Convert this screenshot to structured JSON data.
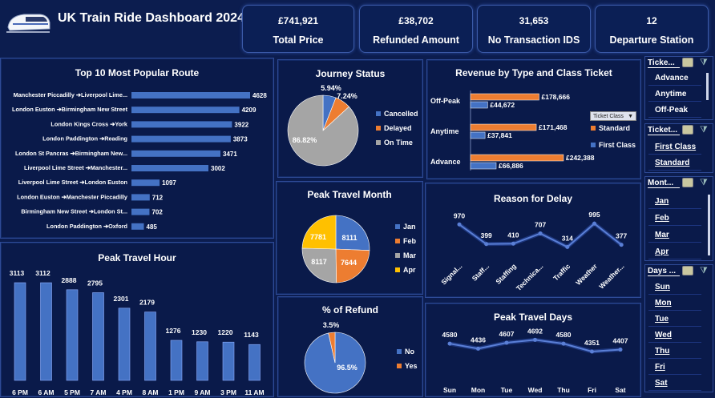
{
  "header": {
    "title": "UK Train Ride Dashboard 2024"
  },
  "kpis": [
    {
      "value": "£741,921",
      "label": "Total Price"
    },
    {
      "value": "£38,702",
      "label": "Refunded Amount"
    },
    {
      "value": "31,653",
      "label": "No Transaction IDS"
    },
    {
      "value": "12",
      "label": "Departure Station"
    }
  ],
  "panels": {
    "routes_title": "Top 10 Most Popular Route",
    "journey_title": "Journey Status",
    "revenue_title": "Revenue by Type and Class Ticket",
    "month_title": "Peak Travel Month",
    "delay_title": "Reason for Delay",
    "hour_title": "Peak Travel Hour",
    "refund_title": "% of Refund",
    "days_title": "Peak Travel Days"
  },
  "ticket_class_dropdown": "Ticket Class",
  "slicers": [
    {
      "header": "Ticke...",
      "items": [
        "Advance",
        "Anytime",
        "Off-Peak"
      ]
    },
    {
      "header": "Ticket...",
      "items": [
        "First Class",
        "Standard"
      ]
    },
    {
      "header": "Mont...",
      "items": [
        "Jan",
        "Feb",
        "Mar",
        "Apr"
      ]
    },
    {
      "header": "Days ...",
      "items": [
        "Sun",
        "Mon",
        "Tue",
        "Wed",
        "Thu",
        "Fri",
        "Sat"
      ]
    }
  ],
  "colors": {
    "blue": "#4472c4",
    "orange": "#ed7d31",
    "gray": "#a5a5a5",
    "yellow": "#ffc000",
    "bg": "#0c1d4f"
  },
  "chart_data": [
    {
      "id": "routes",
      "type": "bar",
      "orientation": "horizontal",
      "categories": [
        "Manchester Piccadilly ➔Liverpool Lime...",
        "London Euston ➔Birmingham New Street",
        "London Kings Cross ➔York",
        "London Paddington ➔Reading",
        "London St Pancras ➔Birmingham New...",
        "Liverpool Lime Street ➔Manchester...",
        "Liverpool Lime Street ➔London Euston",
        "London Euston ➔Manchester Piccadilly",
        "Birmingham New Street ➔London St...",
        "London Paddington ➔Oxford"
      ],
      "values": [
        4628,
        4209,
        3922,
        3873,
        3471,
        3002,
        1097,
        712,
        702,
        485
      ],
      "labels": [
        "4628",
        "4209",
        "3922",
        "3873",
        "3471",
        "3002",
        "1097",
        "712",
        "702",
        "485"
      ]
    },
    {
      "id": "journey",
      "type": "pie",
      "categories": [
        "Cancelled",
        "Delayed",
        "On Time"
      ],
      "values": [
        5.94,
        7.24,
        86.82
      ],
      "labels": [
        "5.94%",
        "7.24%",
        "86.82%"
      ],
      "colors": [
        "#4472c4",
        "#ed7d31",
        "#a5a5a5"
      ]
    },
    {
      "id": "revenue",
      "type": "bar",
      "orientation": "horizontal",
      "categories": [
        "Off-Peak",
        "Anytime",
        "Advance"
      ],
      "series": [
        {
          "name": "Standard",
          "values": [
            178666,
            171468,
            242388
          ],
          "labels": [
            "£178,666",
            "£171,468",
            "£242,388"
          ],
          "color": "#ed7d31"
        },
        {
          "name": "First Class",
          "values": [
            44672,
            37841,
            66886
          ],
          "labels": [
            "£44,672",
            "£37,841",
            "£66,886"
          ],
          "color": "#4472c4"
        }
      ]
    },
    {
      "id": "month",
      "type": "pie",
      "categories": [
        "Jan",
        "Feb",
        "Mar",
        "Apr"
      ],
      "values": [
        8111,
        7644,
        8117,
        7781
      ],
      "labels": [
        "8111",
        "7644",
        "8117",
        "7781"
      ],
      "colors": [
        "#4472c4",
        "#ed7d31",
        "#a5a5a5",
        "#ffc000"
      ]
    },
    {
      "id": "delay",
      "type": "line",
      "categories": [
        "Signal...",
        "Staff...",
        "Staffing",
        "Technica...",
        "Traffic",
        "Weather",
        "Weather..."
      ],
      "values": [
        970,
        399,
        410,
        707,
        314,
        995,
        377
      ],
      "labels": [
        "970",
        "399",
        "410",
        "707",
        "314",
        "995",
        "377"
      ]
    },
    {
      "id": "hour",
      "type": "bar",
      "categories": [
        "6 PM",
        "6 AM",
        "5 PM",
        "7 AM",
        "4 PM",
        "8 AM",
        "1 PM",
        "9 AM",
        "3 PM",
        "11 AM"
      ],
      "values": [
        3113,
        3112,
        2888,
        2795,
        2301,
        2179,
        1276,
        1230,
        1220,
        1143
      ],
      "labels": [
        "3113",
        "3112",
        "2888",
        "2795",
        "2301",
        "2179",
        "1276",
        "1230",
        "1220",
        "1143"
      ]
    },
    {
      "id": "refund",
      "type": "pie",
      "categories": [
        "No",
        "Yes"
      ],
      "values": [
        96.5,
        3.5
      ],
      "labels": [
        "96.5%",
        "3.5%"
      ],
      "colors": [
        "#4472c4",
        "#ed7d31"
      ]
    },
    {
      "id": "days",
      "type": "line",
      "categories": [
        "Sun",
        "Mon",
        "Tue",
        "Wed",
        "Thu",
        "Fri",
        "Sat"
      ],
      "values": [
        4580,
        4436,
        4607,
        4692,
        4580,
        4351,
        4407
      ],
      "labels": [
        "4580",
        "4436",
        "4607",
        "4692",
        "4580",
        "4351",
        "4407"
      ]
    }
  ]
}
